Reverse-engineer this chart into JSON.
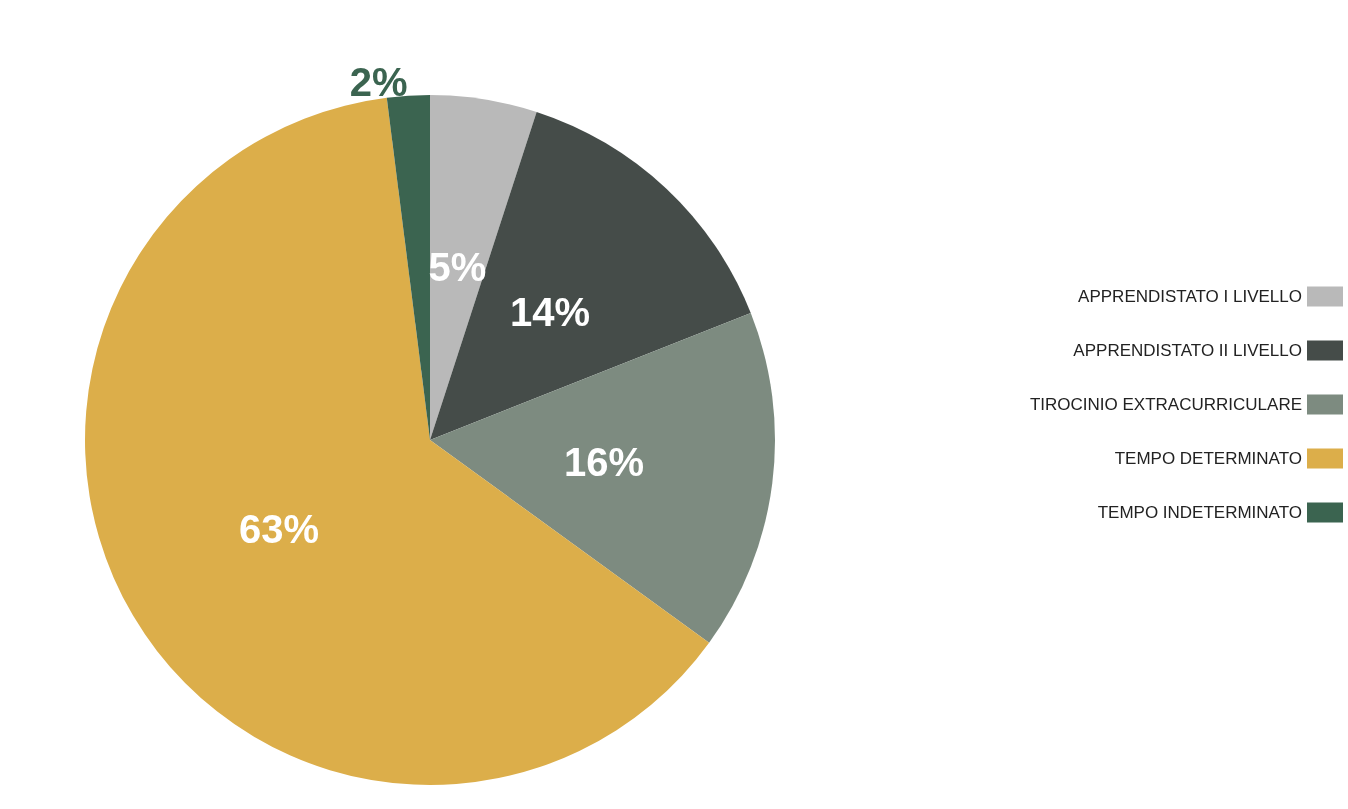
{
  "chart_data": {
    "type": "pie",
    "categories": [
      "APPRENDISTATO I LIVELLO",
      "APPRENDISTATO II LIVELLO",
      "TIROCINIO EXTRACURRICULARE",
      "TEMPO DETERMINATO",
      "TEMPO INDETERMINATO"
    ],
    "values": [
      5,
      14,
      16,
      63,
      2
    ],
    "value_labels": [
      "5%",
      "14%",
      "16%",
      "63%",
      "2%"
    ],
    "colors": [
      "#b9b9b9",
      "#454c49",
      "#7d8b80",
      "#dcae4a",
      "#3b6450"
    ],
    "legend": "right"
  }
}
